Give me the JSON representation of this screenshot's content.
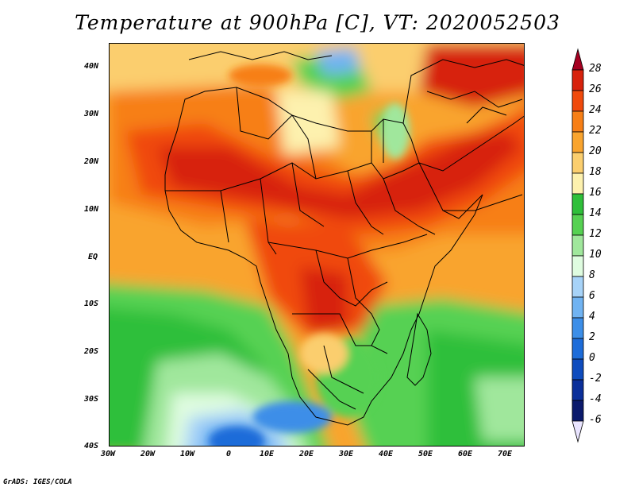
{
  "title": "Temperature at 900hPa [C], VT: 2020052503",
  "credit": "GrADS: IGES/COLA",
  "map": {
    "lat_labels": [
      "40N",
      "30N",
      "20N",
      "10N",
      "EQ",
      "10S",
      "20S",
      "30S",
      "40S"
    ],
    "lon_labels": [
      "30W",
      "20W",
      "10W",
      "0",
      "10E",
      "20E",
      "30E",
      "40E",
      "50E",
      "60E",
      "70E"
    ]
  },
  "colorbar": {
    "labels": [
      "28",
      "26",
      "24",
      "22",
      "20",
      "18",
      "16",
      "14",
      "12",
      "10",
      "8",
      "6",
      "4",
      "2",
      "0",
      "-2",
      "-4",
      "-6"
    ],
    "colors": [
      "#a50021",
      "#d7220c",
      "#f04a0c",
      "#f77f16",
      "#f9a42e",
      "#fbce6e",
      "#fdf1ae",
      "#2fbf3a",
      "#56d152",
      "#a0e79c",
      "#dffce0",
      "#a7d3f8",
      "#70b3f2",
      "#3c8ee8",
      "#1d6cd9",
      "#0e4cbe",
      "#0a2f9a",
      "#0b1a6c",
      "#e9e4ff"
    ]
  }
}
